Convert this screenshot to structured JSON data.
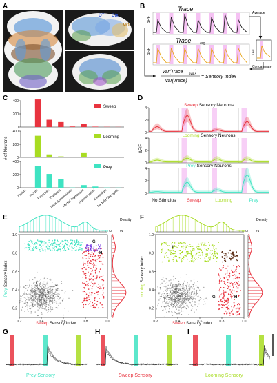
{
  "panels": {
    "A": {
      "letter": "A",
      "labels": [
        "OT",
        "Ctx",
        "MO"
      ]
    },
    "B": {
      "letter": "B",
      "trace_title": "Trace",
      "trace_avg_title": "Trace",
      "trace_avg_sub": "avg",
      "average_label": "Average",
      "concatenate_label": "Concatenate",
      "ylabel": "ΔF/F",
      "formula_num": "var(Trace",
      "formula_num_sub": "avg",
      "formula_num_end": ")",
      "formula_den": "var(Trace)",
      "formula_rhs": "= Sensory Index"
    },
    "C": {
      "letter": "C",
      "ylabel": "# of Neurons"
    },
    "D": {
      "letter": "D",
      "ylabel": "ΔF/F",
      "titles": [
        {
          "colored": "Sweep",
          "rest": " Sensory Neurons",
          "color": "#e8343f"
        },
        {
          "colored": "Looming",
          "rest": " Sensory Neurons",
          "color": "#a8dc22"
        },
        {
          "colored": "Prey",
          "rest": " Sensory Neurons",
          "color": "#3fe3c2"
        }
      ],
      "xlabels": [
        {
          "text": "No Stimulus",
          "color": "#111111"
        },
        {
          "text": "Sweep",
          "color": "#e8343f"
        },
        {
          "text": "Looming",
          "color": "#a8dc22"
        },
        {
          "text": "Prey",
          "color": "#3fe3c2"
        }
      ]
    },
    "E": {
      "letter": "E",
      "xlabel_color": "Sweep",
      "xlabel_rest": " Sensory Index",
      "ylabel_color": "Prey",
      "ylabel_rest": " Sensory Index",
      "density": "Density",
      "marks": [
        "G",
        "H",
        "I"
      ]
    },
    "F": {
      "letter": "F",
      "xlabel_color": "Sweep",
      "xlabel_rest": " Sensory Index",
      "ylabel_color": "Looming",
      "ylabel_rest": " Sensory Index",
      "density": "Density",
      "marks": [
        "I",
        "G",
        "H"
      ]
    },
    "G": {
      "letter": "G",
      "label": "Prey Sensory",
      "color": "#3fe3c2"
    },
    "H": {
      "letter": "H",
      "label": "Sweep Sensory",
      "color": "#e8343f"
    },
    "I": {
      "letter": "I",
      "label": "Looming Sensory",
      "color": "#a8dc22"
    }
  },
  "chart_data": [
    {
      "type": "bar",
      "panel": "C",
      "categories": [
        "Pallium",
        "Tectum",
        "Pretectum",
        "Thalamus",
        "Torus Semicircularis",
        "Medial Tegmentum",
        "Nucleus Isthmi",
        "Cerebellum",
        "Medulla Oblongata"
      ],
      "series": [
        {
          "name": "Sweep",
          "color": "#e8343f",
          "values": [
            0,
            420,
            110,
            75,
            8,
            50,
            6,
            3,
            2
          ],
          "ylim": [
            0,
            400
          ],
          "yticks": [
            0,
            200,
            400
          ]
        },
        {
          "name": "Looming",
          "color": "#a8dc22",
          "values": [
            0,
            330,
            45,
            15,
            2,
            75,
            4,
            2,
            2
          ],
          "ylim": [
            0,
            400
          ],
          "yticks": [
            0,
            200,
            400
          ]
        },
        {
          "name": "Prey",
          "color": "#3fe3c2",
          "values": [
            0,
            330,
            210,
            130,
            3,
            40,
            18,
            3,
            2
          ],
          "ylim": [
            0,
            400
          ],
          "yticks": [
            0,
            200,
            400
          ]
        }
      ]
    },
    {
      "type": "line",
      "panel": "D",
      "ylim": [
        0,
        4
      ],
      "yticks": [
        0,
        2,
        4
      ],
      "series": [
        {
          "name": "Sweep",
          "color": "#e8343f",
          "peaks": [
            0.8,
            2.6,
            0.3,
            1.6
          ]
        },
        {
          "name": "Looming",
          "color": "#a8dc22",
          "peaks": [
            0.3,
            0.6,
            0.5,
            0.5
          ]
        },
        {
          "name": "Prey",
          "color": "#3fe3c2",
          "peaks": [
            0.1,
            1.6,
            0.4,
            2.8
          ]
        }
      ]
    },
    {
      "type": "scatter",
      "panel": "E",
      "xlim": [
        0.2,
        1.0
      ],
      "ylim": [
        0.1,
        1.0
      ],
      "xticks": [
        0.2,
        0.4,
        0.6,
        0.8,
        1.0
      ],
      "yticks": [
        0.2,
        0.4,
        0.6,
        0.8,
        1.0
      ],
      "density_ticks": [
        0,
        2
      ]
    },
    {
      "type": "scatter",
      "panel": "F",
      "xlim": [
        0.2,
        1.0
      ],
      "ylim": [
        0.1,
        1.0
      ],
      "xticks": [
        0.2,
        0.4,
        0.6,
        0.8,
        1.0
      ],
      "yticks": [
        0.2,
        0.4,
        0.6,
        0.8,
        1.0
      ],
      "density_ticks": [
        0,
        2
      ]
    }
  ],
  "colors": {
    "sweep": "#e8343f",
    "looming": "#a8dc22",
    "prey": "#3fe3c2",
    "highlight": "#f1a7ee"
  }
}
